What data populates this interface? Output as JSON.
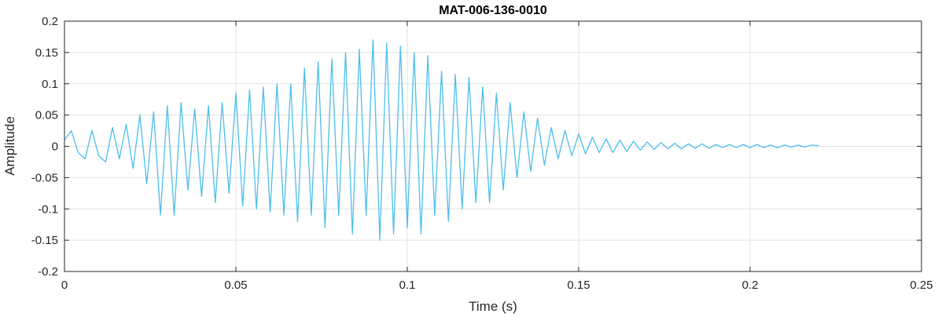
{
  "chart_data": {
    "type": "line",
    "title": "MAT-006-136-0010",
    "xlabel": "Time (s)",
    "ylabel": "Amplitude",
    "xlim": [
      0,
      0.25
    ],
    "ylim": [
      -0.2,
      0.2
    ],
    "xticks": [
      0,
      0.05,
      0.1,
      0.15,
      0.2,
      0.25
    ],
    "xtick_labels": [
      "0",
      "0.05",
      "0.1",
      "0.15",
      "0.2",
      "0.25"
    ],
    "yticks": [
      -0.2,
      -0.15,
      -0.1,
      -0.05,
      0,
      0.05,
      0.1,
      0.15,
      0.2
    ],
    "ytick_labels": [
      "-0.2",
      "-0.15",
      "-0.1",
      "-0.05",
      "0",
      "0.05",
      "0.1",
      "0.15",
      "0.2"
    ],
    "grid": true,
    "series": [
      {
        "color": "#4DBEEE",
        "x": [
          0.0,
          0.002,
          0.004,
          0.006,
          0.008,
          0.01,
          0.012,
          0.014,
          0.016,
          0.018,
          0.02,
          0.022,
          0.024,
          0.026,
          0.028,
          0.03,
          0.032,
          0.034,
          0.036,
          0.038,
          0.04,
          0.042,
          0.044,
          0.046,
          0.048,
          0.05,
          0.052,
          0.054,
          0.056,
          0.058,
          0.06,
          0.062,
          0.064,
          0.066,
          0.068,
          0.07,
          0.072,
          0.074,
          0.076,
          0.078,
          0.08,
          0.082,
          0.084,
          0.086,
          0.088,
          0.09,
          0.092,
          0.094,
          0.096,
          0.098,
          0.1,
          0.102,
          0.104,
          0.106,
          0.108,
          0.11,
          0.112,
          0.114,
          0.116,
          0.118,
          0.12,
          0.122,
          0.124,
          0.126,
          0.128,
          0.13,
          0.132,
          0.134,
          0.136,
          0.138,
          0.14,
          0.142,
          0.144,
          0.146,
          0.148,
          0.15,
          0.152,
          0.154,
          0.156,
          0.158,
          0.16,
          0.162,
          0.164,
          0.166,
          0.168,
          0.17,
          0.172,
          0.174,
          0.176,
          0.178,
          0.18,
          0.182,
          0.184,
          0.186,
          0.188,
          0.19,
          0.192,
          0.194,
          0.196,
          0.198,
          0.2,
          0.202,
          0.204,
          0.206,
          0.208,
          0.21,
          0.212,
          0.214,
          0.216,
          0.218,
          0.22
        ],
        "y": [
          0.01,
          0.025,
          -0.01,
          -0.02,
          0.025,
          -0.015,
          -0.025,
          0.03,
          -0.02,
          0.035,
          -0.035,
          0.05,
          -0.06,
          0.055,
          -0.11,
          0.065,
          -0.11,
          0.07,
          -0.07,
          0.06,
          -0.08,
          0.065,
          -0.09,
          0.07,
          -0.075,
          0.085,
          -0.095,
          0.09,
          -0.1,
          0.095,
          -0.105,
          0.1,
          -0.11,
          0.1,
          -0.12,
          0.125,
          -0.11,
          0.135,
          -0.13,
          0.14,
          -0.11,
          0.15,
          -0.14,
          0.155,
          -0.11,
          0.17,
          -0.15,
          0.165,
          -0.14,
          0.16,
          -0.13,
          0.15,
          -0.14,
          0.145,
          -0.11,
          0.12,
          -0.12,
          0.115,
          -0.1,
          0.11,
          -0.09,
          0.095,
          -0.09,
          0.085,
          -0.07,
          0.07,
          -0.05,
          0.055,
          -0.04,
          0.045,
          -0.03,
          0.03,
          -0.02,
          0.025,
          -0.015,
          0.02,
          -0.012,
          0.015,
          -0.01,
          0.012,
          -0.01,
          0.01,
          -0.008,
          0.008,
          -0.006,
          0.007,
          -0.005,
          0.006,
          -0.004,
          0.005,
          -0.004,
          0.004,
          -0.003,
          0.004,
          -0.003,
          0.003,
          -0.002,
          0.003,
          -0.002,
          0.003,
          -0.002,
          0.003,
          -0.002,
          0.002,
          -0.002,
          0.002,
          -0.001,
          0.002,
          -0.001,
          0.002,
          0.001
        ]
      }
    ]
  }
}
